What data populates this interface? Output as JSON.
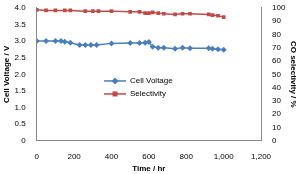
{
  "chart_data": {
    "type": "line",
    "x_label": "Time / hr",
    "y_label": "Cell Voltage / V",
    "y2_label": "CO selectivity / %",
    "xlim": [
      0,
      1200
    ],
    "xticks": [
      0,
      200,
      400,
      600,
      800,
      1000,
      1200
    ],
    "ylim": [
      0,
      4
    ],
    "yticks": [
      0,
      0.5,
      1,
      1.5,
      2,
      2.5,
      3,
      3.5,
      4
    ],
    "y2lim": [
      0,
      100
    ],
    "y2ticks": [
      0,
      10,
      20,
      30,
      40,
      50,
      60,
      70,
      80,
      90,
      100
    ],
    "grid": false,
    "legend": "center",
    "series": [
      {
        "name": "Cell Voltage",
        "color": "#4a7ebb",
        "marker": "diamond",
        "axis": "y",
        "x": [
          0,
          50,
          100,
          130,
          150,
          180,
          230,
          260,
          290,
          320,
          400,
          500,
          550,
          580,
          600,
          620,
          650,
          680,
          740,
          780,
          820,
          920,
          940,
          970,
          1000
        ],
        "values": [
          3.0,
          3.0,
          3.0,
          3.0,
          2.98,
          2.95,
          2.88,
          2.88,
          2.88,
          2.88,
          2.93,
          2.94,
          2.94,
          2.95,
          2.97,
          2.83,
          2.8,
          2.8,
          2.77,
          2.8,
          2.78,
          2.78,
          2.77,
          2.75,
          2.74
        ]
      },
      {
        "name": "Selectivity",
        "color": "#be4b48",
        "marker": "square",
        "axis": "y2",
        "x": [
          0,
          50,
          100,
          150,
          180,
          260,
          300,
          330,
          400,
          500,
          550,
          580,
          600,
          620,
          650,
          680,
          740,
          780,
          820,
          920,
          940,
          970,
          1000
        ],
        "values": [
          98.5,
          98,
          98,
          98,
          98,
          97.5,
          97.5,
          97.5,
          97.5,
          97,
          97,
          96,
          96,
          96.5,
          96,
          95.5,
          95,
          95.5,
          95.5,
          95,
          94.5,
          94,
          93
        ]
      }
    ]
  }
}
